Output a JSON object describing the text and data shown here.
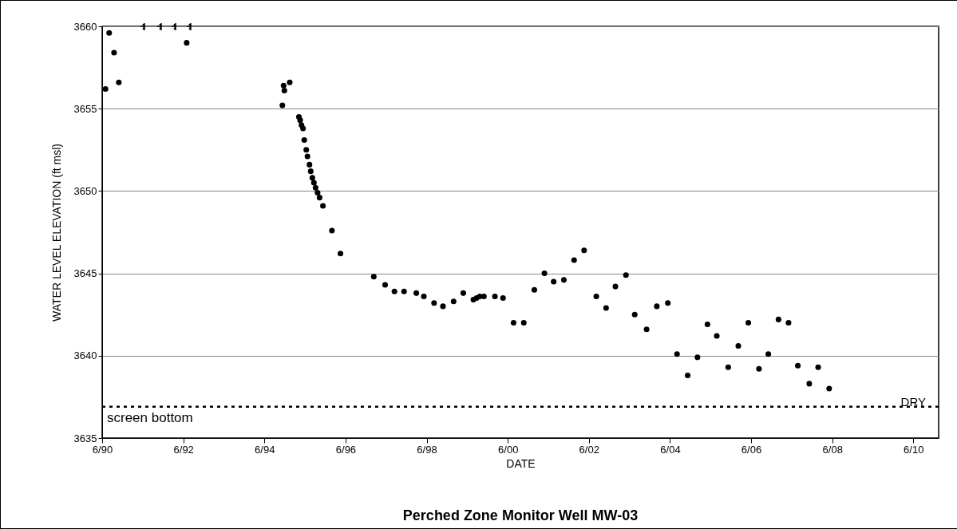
{
  "chart_data": {
    "type": "scatter",
    "title": "Perched Zone Monitor Well MW-03",
    "xlabel": "DATE",
    "ylabel": "WATER LEVEL ELEVATION (ft msl)",
    "xlim": [
      "1990-06-01",
      "2011-01-15"
    ],
    "xticks": [
      {
        "value": "1990-06-01",
        "label": "6/90"
      },
      {
        "value": "1992-06-01",
        "label": "6/92"
      },
      {
        "value": "1994-06-01",
        "label": "6/94"
      },
      {
        "value": "1996-06-01",
        "label": "6/96"
      },
      {
        "value": "1998-06-01",
        "label": "6/98"
      },
      {
        "value": "2000-06-01",
        "label": "6/00"
      },
      {
        "value": "2002-06-01",
        "label": "6/02"
      },
      {
        "value": "2004-06-01",
        "label": "6/04"
      },
      {
        "value": "2006-06-01",
        "label": "6/06"
      },
      {
        "value": "2008-06-01",
        "label": "6/08"
      },
      {
        "value": "2010-06-01",
        "label": "6/10"
      }
    ],
    "ylim": [
      3635,
      3660
    ],
    "yticks": [
      3635,
      3640,
      3645,
      3650,
      3655,
      3660
    ],
    "grid": "y",
    "marker": "circle",
    "ref_lines": [
      {
        "axis": "y",
        "value": 3636.9,
        "label": "screen bottom",
        "color": "#000000",
        "line_style": "dotted"
      }
    ],
    "annotations": [
      {
        "text": "DRY",
        "x": "2010-06-01",
        "y": 3636.9
      }
    ],
    "series": [
      {
        "color": "#000000",
        "x": [
          "1990-07-01",
          "1990-08-03",
          "1990-09-16",
          "1990-10-29",
          "1992-07-01",
          "1994-11-10",
          "1994-11-21",
          "1994-11-28",
          "1995-01-15",
          "1995-04-08",
          "1995-04-19",
          "1995-05-01",
          "1995-05-15",
          "1995-05-26",
          "1995-06-13",
          "1995-06-24",
          "1995-07-12",
          "1995-07-23",
          "1995-08-07",
          "1995-08-21",
          "1995-09-05",
          "1995-09-23",
          "1995-10-11",
          "1995-11-10",
          "1996-01-30",
          "1996-04-16",
          "1997-02-10",
          "1997-05-23",
          "1997-08-15",
          "1997-11-10",
          "1998-02-28",
          "1998-05-07",
          "1998-08-07",
          "1998-10-26",
          "1999-01-30",
          "1999-04-27",
          "1999-07-27",
          "1999-08-25",
          "1999-09-23",
          "1999-10-30",
          "2000-02-06",
          "2000-04-19",
          "2000-07-23",
          "2000-10-23",
          "2001-01-26",
          "2001-04-27",
          "2001-07-19",
          "2001-10-19",
          "2002-01-19",
          "2002-04-19",
          "2002-08-07",
          "2002-11-03",
          "2003-01-26",
          "2003-05-01",
          "2003-07-19",
          "2003-11-03",
          "2004-02-03",
          "2004-05-12",
          "2004-08-03",
          "2004-11-07",
          "2005-02-03",
          "2005-05-04",
          "2005-07-27",
          "2005-11-07",
          "2006-02-06",
          "2006-05-07",
          "2006-08-11",
          "2006-11-03",
          "2007-02-03",
          "2007-05-04",
          "2007-07-27",
          "2007-11-07",
          "2008-01-26",
          "2008-05-04"
        ],
        "values": [
          3656.2,
          3659.6,
          3658.4,
          3656.6,
          3659.0,
          3655.2,
          3656.4,
          3656.1,
          3656.6,
          3654.5,
          3654.3,
          3654.0,
          3653.8,
          3653.1,
          3652.5,
          3652.1,
          3651.6,
          3651.2,
          3650.8,
          3650.5,
          3650.2,
          3649.9,
          3649.6,
          3649.1,
          3647.6,
          3646.2,
          3644.8,
          3644.3,
          3643.9,
          3643.9,
          3643.8,
          3643.6,
          3643.2,
          3643.0,
          3643.3,
          3643.8,
          3643.4,
          3643.5,
          3643.6,
          3643.6,
          3643.6,
          3643.5,
          3642.0,
          3642.0,
          3644.0,
          3645.0,
          3644.5,
          3644.6,
          3645.8,
          3646.4,
          3643.6,
          3642.9,
          3644.2,
          3644.9,
          3642.5,
          3641.6,
          3643.0,
          3643.2,
          3640.1,
          3638.8,
          3639.9,
          3641.9,
          3641.2,
          3639.3,
          3640.6,
          3642.0,
          3639.2,
          3640.1,
          3642.2,
          3642.0,
          3639.4,
          3638.3,
          3639.3,
          3638.0
        ]
      }
    ]
  }
}
